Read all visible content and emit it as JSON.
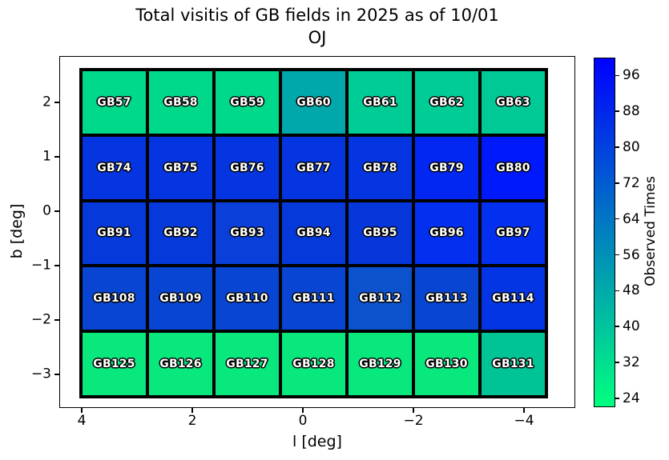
{
  "chart_data": {
    "type": "heatmap",
    "title": "Total visitis of GB fields in 2025 as of 10/01",
    "subtitle": "OJ",
    "xlabel": "l [deg]",
    "ylabel": "b [deg]",
    "x_ticks": [
      "4",
      "2",
      "0",
      "−2",
      "−4"
    ],
    "x_tick_values": [
      4,
      2,
      0,
      -2,
      -4
    ],
    "x_axis_inverted": true,
    "xlim": [
      4.4,
      -4.5
    ],
    "y_ticks": [
      "2",
      "1",
      "0",
      "−1",
      "−2",
      "−3"
    ],
    "y_tick_values": [
      2,
      1,
      0,
      -1,
      -2,
      -3
    ],
    "ylim": [
      -3.45,
      2.65
    ],
    "grid_on": false,
    "cells": [
      [
        {
          "label": "GB57",
          "value": 34,
          "color": "#00d98a"
        },
        {
          "label": "GB58",
          "value": 34,
          "color": "#00d98a"
        },
        {
          "label": "GB59",
          "value": 34,
          "color": "#00d98a"
        },
        {
          "label": "GB60",
          "value": 49,
          "color": "#00a8ab"
        },
        {
          "label": "GB61",
          "value": 38,
          "color": "#00cc95"
        },
        {
          "label": "GB62",
          "value": 38,
          "color": "#00cc95"
        },
        {
          "label": "GB63",
          "value": 38,
          "color": "#00c996"
        }
      ],
      [
        {
          "label": "GB74",
          "value": 84,
          "color": "#0435e0"
        },
        {
          "label": "GB75",
          "value": 84,
          "color": "#0435e0"
        },
        {
          "label": "GB76",
          "value": 84,
          "color": "#0435e0"
        },
        {
          "label": "GB77",
          "value": 84,
          "color": "#0435e0"
        },
        {
          "label": "GB78",
          "value": 84,
          "color": "#0435e0"
        },
        {
          "label": "GB79",
          "value": 88,
          "color": "#0227f2"
        },
        {
          "label": "GB80",
          "value": 92,
          "color": "#0019fa"
        }
      ],
      [
        {
          "label": "GB91",
          "value": 83,
          "color": "#0639da"
        },
        {
          "label": "GB92",
          "value": 83,
          "color": "#0639da"
        },
        {
          "label": "GB93",
          "value": 80,
          "color": "#0a40d9"
        },
        {
          "label": "GB94",
          "value": 83,
          "color": "#0639da"
        },
        {
          "label": "GB95",
          "value": 83,
          "color": "#0537db"
        },
        {
          "label": "GB96",
          "value": 85,
          "color": "#0330ee"
        },
        {
          "label": "GB97",
          "value": 85,
          "color": "#0330ee"
        }
      ],
      [
        {
          "label": "GB108",
          "value": 79,
          "color": "#0845d2"
        },
        {
          "label": "GB109",
          "value": 79,
          "color": "#0845d2"
        },
        {
          "label": "GB110",
          "value": 79,
          "color": "#0845d2"
        },
        {
          "label": "GB111",
          "value": 79,
          "color": "#0845d2"
        },
        {
          "label": "GB112",
          "value": 75,
          "color": "#0d52cd"
        },
        {
          "label": "GB113",
          "value": 79,
          "color": "#0845d2"
        },
        {
          "label": "GB114",
          "value": 84,
          "color": "#0435e4"
        }
      ],
      [
        {
          "label": "GB125",
          "value": 29,
          "color": "#09e87d"
        },
        {
          "label": "GB126",
          "value": 29,
          "color": "#09e87d"
        },
        {
          "label": "GB127",
          "value": 29,
          "color": "#09e87d"
        },
        {
          "label": "GB128",
          "value": 29,
          "color": "#09e87d"
        },
        {
          "label": "GB129",
          "value": 29,
          "color": "#09e87d"
        },
        {
          "label": "GB130",
          "value": 29,
          "color": "#09e87d"
        },
        {
          "label": "GB131",
          "value": 40,
          "color": "#00c495"
        }
      ]
    ],
    "colorbar": {
      "label": "Observed Times",
      "ticks": [
        96,
        88,
        80,
        72,
        64,
        56,
        48,
        40,
        32,
        24
      ],
      "vmin": 22,
      "vmax": 100,
      "gradient_top_to_bottom": [
        "#0000ff",
        "#0040df",
        "#0080bf",
        "#00bfa0",
        "#00ff80"
      ],
      "position": "right"
    }
  },
  "colors": {
    "background": "#ffffff",
    "cell_border": "#000000",
    "cell_label_fill": "#ffffff",
    "cell_label_outline": "#000000",
    "axis": "#000000"
  }
}
